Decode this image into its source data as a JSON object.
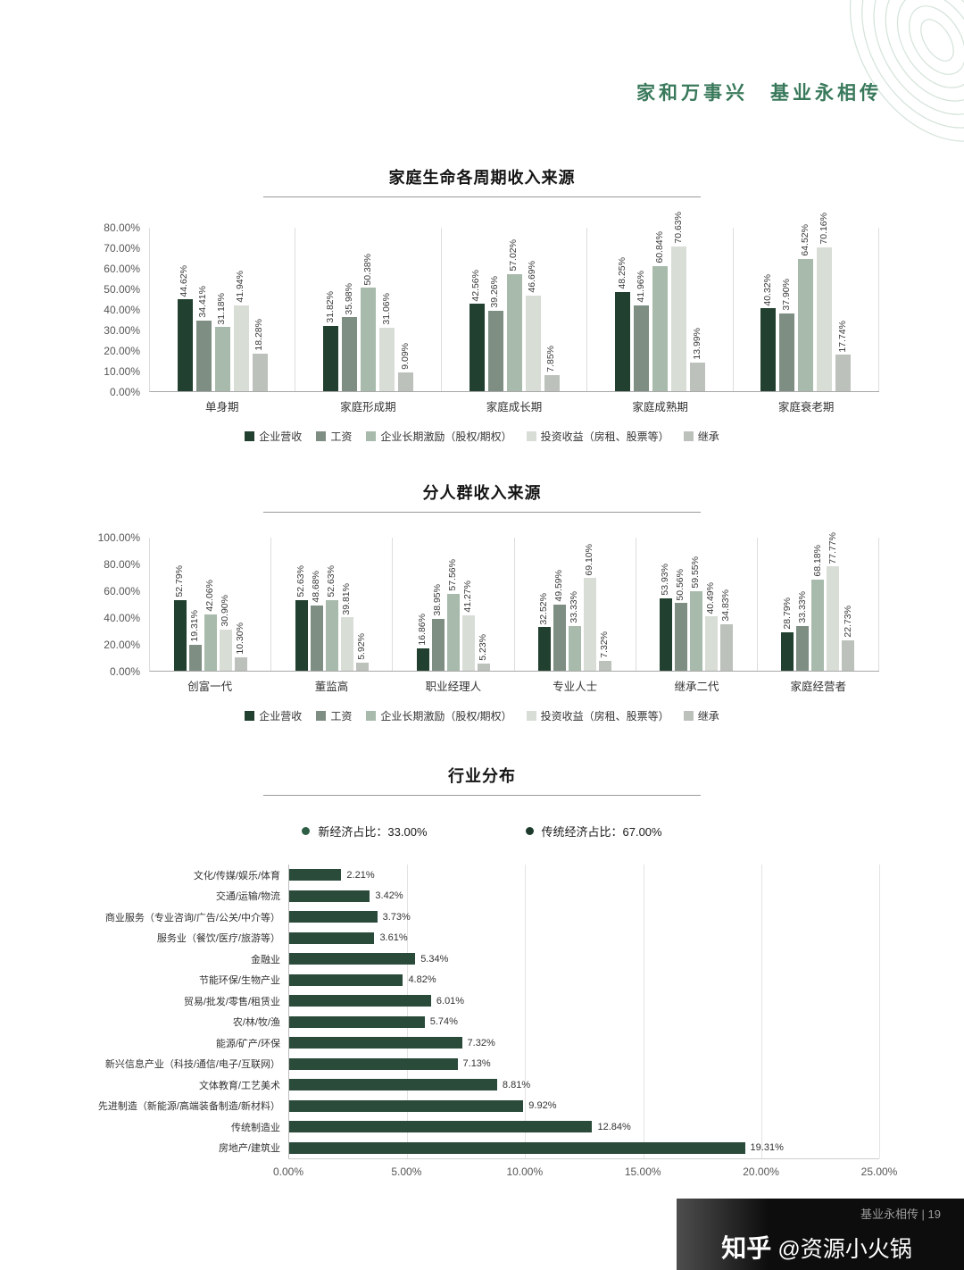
{
  "header": {
    "title": "家和万事兴　基业永相传"
  },
  "footer": {
    "page_label": "基业永相传 | 19",
    "watermark_logo": "知乎",
    "watermark_user": "@资源小火锅"
  },
  "colors": {
    "accent_green": "#39795b",
    "series": [
      "#21402f",
      "#7e8e83",
      "#a8baab",
      "#d8ddd6",
      "#bcc1bb"
    ],
    "hbar": "#2a4a3a",
    "legend_dots": [
      "#2e5d45",
      "#1d3b2c"
    ]
  },
  "chart_data": [
    {
      "type": "bar",
      "title": "家庭生命各周期收入来源",
      "categories": [
        "单身期",
        "家庭形成期",
        "家庭成长期",
        "家庭成熟期",
        "家庭衰老期"
      ],
      "series": [
        {
          "name": "企业营收",
          "values": [
            44.62,
            31.82,
            42.56,
            48.25,
            40.32
          ]
        },
        {
          "name": "工资",
          "values": [
            34.41,
            35.98,
            39.26,
            41.96,
            37.9
          ]
        },
        {
          "name": "企业长期激励（股权/期权）",
          "values": [
            31.18,
            50.38,
            57.02,
            60.84,
            64.52
          ]
        },
        {
          "name": "投资收益（房租、股票等）",
          "values": [
            41.94,
            31.06,
            46.69,
            70.63,
            70.16
          ]
        },
        {
          "name": "继承",
          "values": [
            18.28,
            9.09,
            7.85,
            13.99,
            17.74
          ]
        }
      ],
      "ylim": [
        0,
        80
      ],
      "yticks": [
        "0.00%",
        "10.00%",
        "20.00%",
        "30.00%",
        "40.00%",
        "50.00%",
        "60.00%",
        "70.00%",
        "80.00%"
      ],
      "grid": "vertical-separators",
      "legend_position": "bottom"
    },
    {
      "type": "bar",
      "title": "分人群收入来源",
      "categories": [
        "创富一代",
        "董监高",
        "职业经理人",
        "专业人士",
        "继承二代",
        "家庭经营者"
      ],
      "series": [
        {
          "name": "企业营收",
          "values": [
            52.79,
            52.63,
            16.86,
            32.52,
            53.93,
            28.79
          ]
        },
        {
          "name": "工资",
          "values": [
            19.31,
            48.68,
            38.95,
            49.59,
            50.56,
            33.33
          ]
        },
        {
          "name": "企业长期激励（股权/期权）",
          "values": [
            42.06,
            52.63,
            57.56,
            33.33,
            59.55,
            68.18
          ]
        },
        {
          "name": "投资收益（房租、股票等）",
          "values": [
            30.9,
            39.81,
            41.27,
            69.1,
            40.49,
            77.77
          ]
        },
        {
          "name": "继承",
          "values": [
            10.3,
            5.92,
            5.23,
            7.32,
            34.83,
            22.73
          ]
        }
      ],
      "ylim": [
        0,
        100
      ],
      "yticks": [
        "0.00%",
        "20.00%",
        "40.00%",
        "60.00%",
        "80.00%",
        "100.00%"
      ],
      "grid": "vertical-separators",
      "legend_position": "bottom"
    },
    {
      "type": "bar",
      "orientation": "horizontal",
      "title": "行业分布",
      "legend": [
        "新经济占比：33.00%",
        "传统经济占比：67.00%"
      ],
      "categories": [
        "文化/传媒/娱乐/体育",
        "交通/运输/物流",
        "商业服务（专业咨询/广告/公关/中介等）",
        "服务业（餐饮/医疗/旅游等）",
        "金融业",
        "节能环保/生物产业",
        "贸易/批发/零售/租赁业",
        "农/林/牧/渔",
        "能源/矿产/环保",
        "新兴信息产业（科技/通信/电子/互联网）",
        "文体教育/工艺美术",
        "先进制造（新能源/高端装备制造/新材料）",
        "传统制造业",
        "房地产/建筑业"
      ],
      "values": [
        2.21,
        3.42,
        3.73,
        3.61,
        5.34,
        4.82,
        6.01,
        5.74,
        7.32,
        7.13,
        8.81,
        9.92,
        12.84,
        19.31
      ],
      "xlim": [
        0,
        25
      ],
      "xticks": [
        "0.00%",
        "5.00%",
        "10.00%",
        "15.00%",
        "20.00%",
        "25.00%"
      ],
      "grid": "vertical"
    }
  ]
}
